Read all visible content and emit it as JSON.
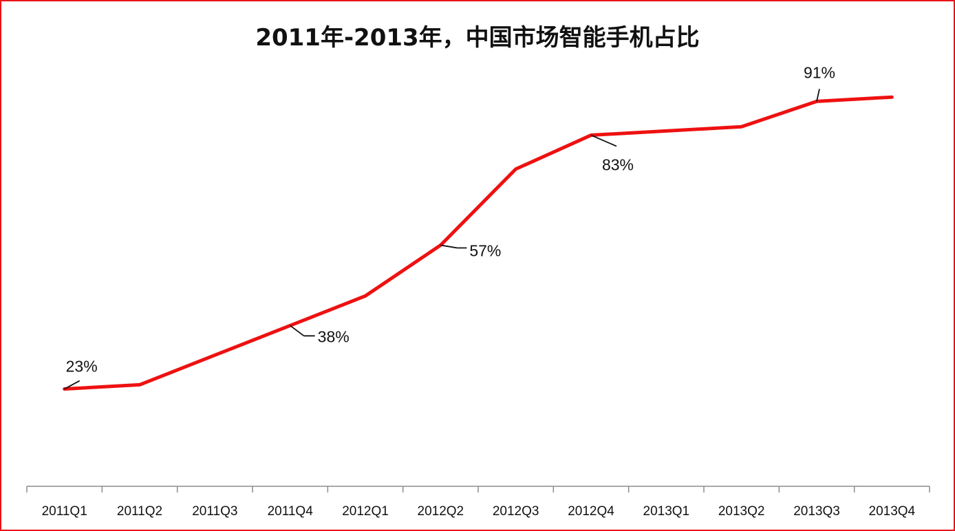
{
  "chart_data": {
    "type": "line",
    "title": "2011年-2013年，中国市场智能手机占比",
    "xlabel": "",
    "ylabel": "",
    "categories": [
      "2011Q1",
      "2011Q2",
      "2011Q3",
      "2011Q4",
      "2012Q1",
      "2012Q2",
      "2012Q3",
      "2012Q4",
      "2013Q1",
      "2013Q2",
      "2013Q3",
      "2013Q4"
    ],
    "series": [
      {
        "values": [
          23,
          24,
          31,
          38,
          45,
          57,
          75,
          83,
          84,
          85,
          91,
          92
        ]
      }
    ],
    "data_labels": [
      {
        "index": 0,
        "text": "23%"
      },
      {
        "index": 3,
        "text": "38%"
      },
      {
        "index": 5,
        "text": "57%"
      },
      {
        "index": 7,
        "text": "83%"
      },
      {
        "index": 10,
        "text": "91%"
      }
    ],
    "ylim": [
      0,
      100
    ],
    "y_axis_visible": false,
    "grid": false,
    "legend": "none",
    "line_color": "#ee1111",
    "border_color": "#e8141a"
  }
}
